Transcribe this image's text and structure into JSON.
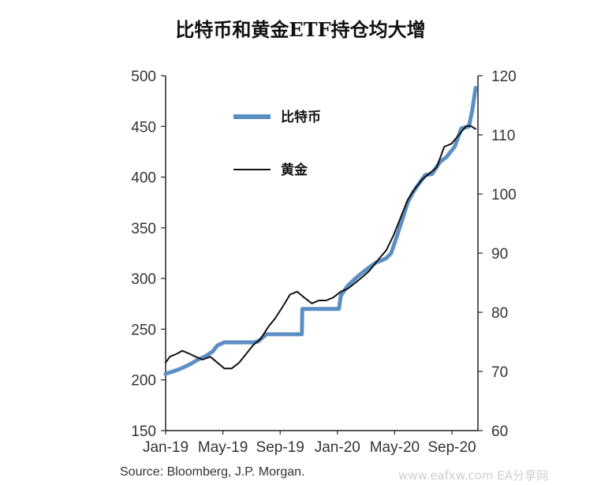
{
  "chart_data": {
    "type": "line",
    "title": "比特币和黄金ETF持仓均大增",
    "x_tick_labels": [
      "Jan-19",
      "May-19",
      "Sep-19",
      "Jan-20",
      "May-20",
      "Sep-20"
    ],
    "y_left": {
      "ylim": [
        150,
        500
      ],
      "ticks": [
        150,
        200,
        250,
        300,
        350,
        400,
        450,
        500
      ]
    },
    "y_right": {
      "ylim": [
        60,
        120
      ],
      "ticks": [
        60,
        70,
        80,
        90,
        100,
        110,
        120
      ]
    },
    "legend_placement": "upper-left inside",
    "grid": false,
    "series": [
      {
        "name": "比特币",
        "axis": "left",
        "color": "#5b8fc4",
        "x": [
          "2019-01-01",
          "2019-01-15",
          "2019-02-01",
          "2019-02-20",
          "2019-03-10",
          "2019-03-25",
          "2019-04-10",
          "2019-04-20",
          "2019-05-05",
          "2019-05-20",
          "2019-06-05",
          "2019-06-20",
          "2019-07-05",
          "2019-07-15",
          "2019-08-01",
          "2019-08-15",
          "2019-09-01",
          "2019-09-15",
          "2019-10-01",
          "2019-10-15",
          "2019-10-16",
          "2019-11-01",
          "2019-12-01",
          "2019-12-20",
          "2020-01-01",
          "2020-01-05",
          "2020-01-20",
          "2020-02-05",
          "2020-02-20",
          "2020-03-05",
          "2020-03-20",
          "2020-04-01",
          "2020-04-10",
          "2020-04-20",
          "2020-05-01",
          "2020-05-15",
          "2020-05-25",
          "2020-06-05",
          "2020-06-20",
          "2020-07-01",
          "2020-07-15",
          "2020-08-01",
          "2020-08-15",
          "2020-09-01",
          "2020-09-15",
          "2020-10-01",
          "2020-10-08",
          "2020-10-15"
        ],
        "values": [
          206,
          208,
          211,
          215,
          220,
          223,
          228,
          234,
          237,
          237,
          237,
          237,
          237,
          238,
          245,
          245,
          245,
          245,
          245,
          245,
          270,
          270,
          270,
          270,
          270,
          283,
          293,
          300,
          306,
          311,
          316,
          318,
          320,
          325,
          340,
          360,
          375,
          385,
          395,
          402,
          403,
          415,
          420,
          430,
          448,
          450,
          466,
          488
        ]
      },
      {
        "name": "黄金",
        "axis": "right",
        "color": "#111111",
        "x": [
          "2019-01-01",
          "2019-01-10",
          "2019-01-25",
          "2019-02-05",
          "2019-02-20",
          "2019-03-05",
          "2019-03-20",
          "2019-04-05",
          "2019-04-20",
          "2019-05-05",
          "2019-05-20",
          "2019-06-05",
          "2019-06-20",
          "2019-07-05",
          "2019-07-20",
          "2019-08-05",
          "2019-08-20",
          "2019-09-05",
          "2019-09-20",
          "2019-10-05",
          "2019-10-20",
          "2019-11-05",
          "2019-11-20",
          "2019-12-05",
          "2019-12-20",
          "2020-01-05",
          "2020-01-20",
          "2020-02-05",
          "2020-02-20",
          "2020-03-05",
          "2020-03-15",
          "2020-03-25",
          "2020-04-10",
          "2020-04-25",
          "2020-05-10",
          "2020-05-25",
          "2020-06-10",
          "2020-06-25",
          "2020-07-10",
          "2020-07-25",
          "2020-08-10",
          "2020-08-25",
          "2020-09-10",
          "2020-09-25",
          "2020-10-05",
          "2020-10-15"
        ],
        "values": [
          71.5,
          72.5,
          73.0,
          73.5,
          73.0,
          72.5,
          72.0,
          72.5,
          71.5,
          70.5,
          70.5,
          71.5,
          73.0,
          74.5,
          75.5,
          77.5,
          79.0,
          81.0,
          83.0,
          83.5,
          82.5,
          81.5,
          82.0,
          82.0,
          82.5,
          83.5,
          84.0,
          85.0,
          86.0,
          87.0,
          88.0,
          89.0,
          90.5,
          93.0,
          96.0,
          99.0,
          101.0,
          102.5,
          103.5,
          104.5,
          108.0,
          108.5,
          110.0,
          111.5,
          111.5,
          111.0
        ]
      }
    ]
  },
  "source": "Source: Bloomberg, J.P. Morgan.",
  "watermark": "www.eafxw.com  EA分享网"
}
